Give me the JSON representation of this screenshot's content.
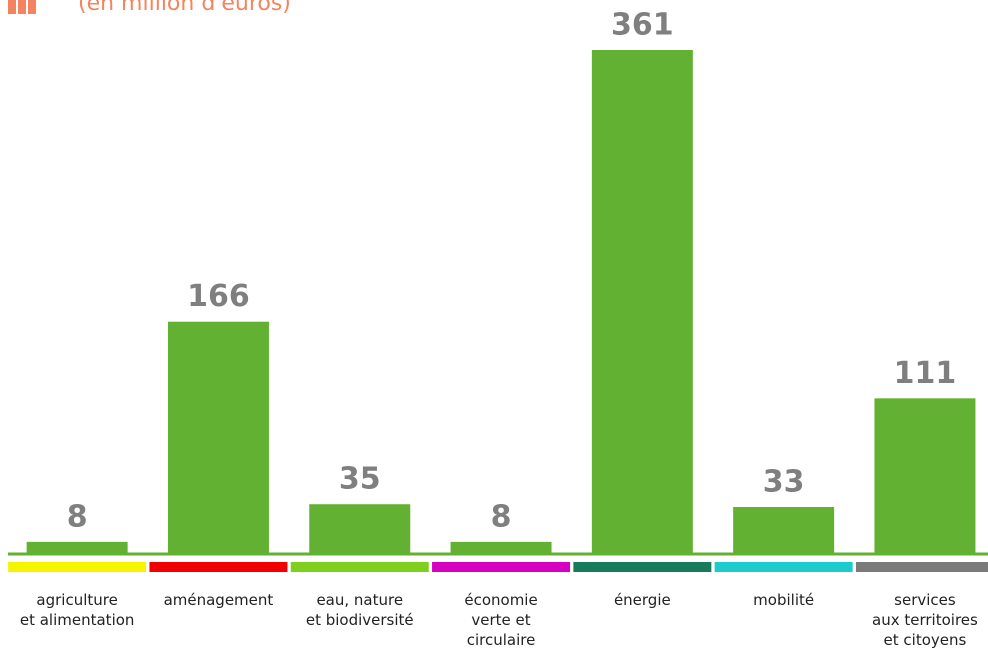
{
  "chart_data": {
    "type": "bar",
    "subtitle": "(en million d'euros)",
    "categories": [
      "agriculture\net alimentation",
      "aménagement",
      "eau, nature\net biodiversité",
      "économie\nverte et\ncirculaire",
      "énergie",
      "mobilité",
      "services\naux territoires\net citoyens"
    ],
    "values": [
      8,
      166,
      35,
      8,
      361,
      33,
      111
    ],
    "color": "#63b132",
    "category_colors": [
      "#f5f500",
      "#f00000",
      "#7fcf1f",
      "#d600c0",
      "#187c5c",
      "#1ccccc",
      "#7a7a7a"
    ],
    "ylim": [
      0,
      361
    ]
  }
}
